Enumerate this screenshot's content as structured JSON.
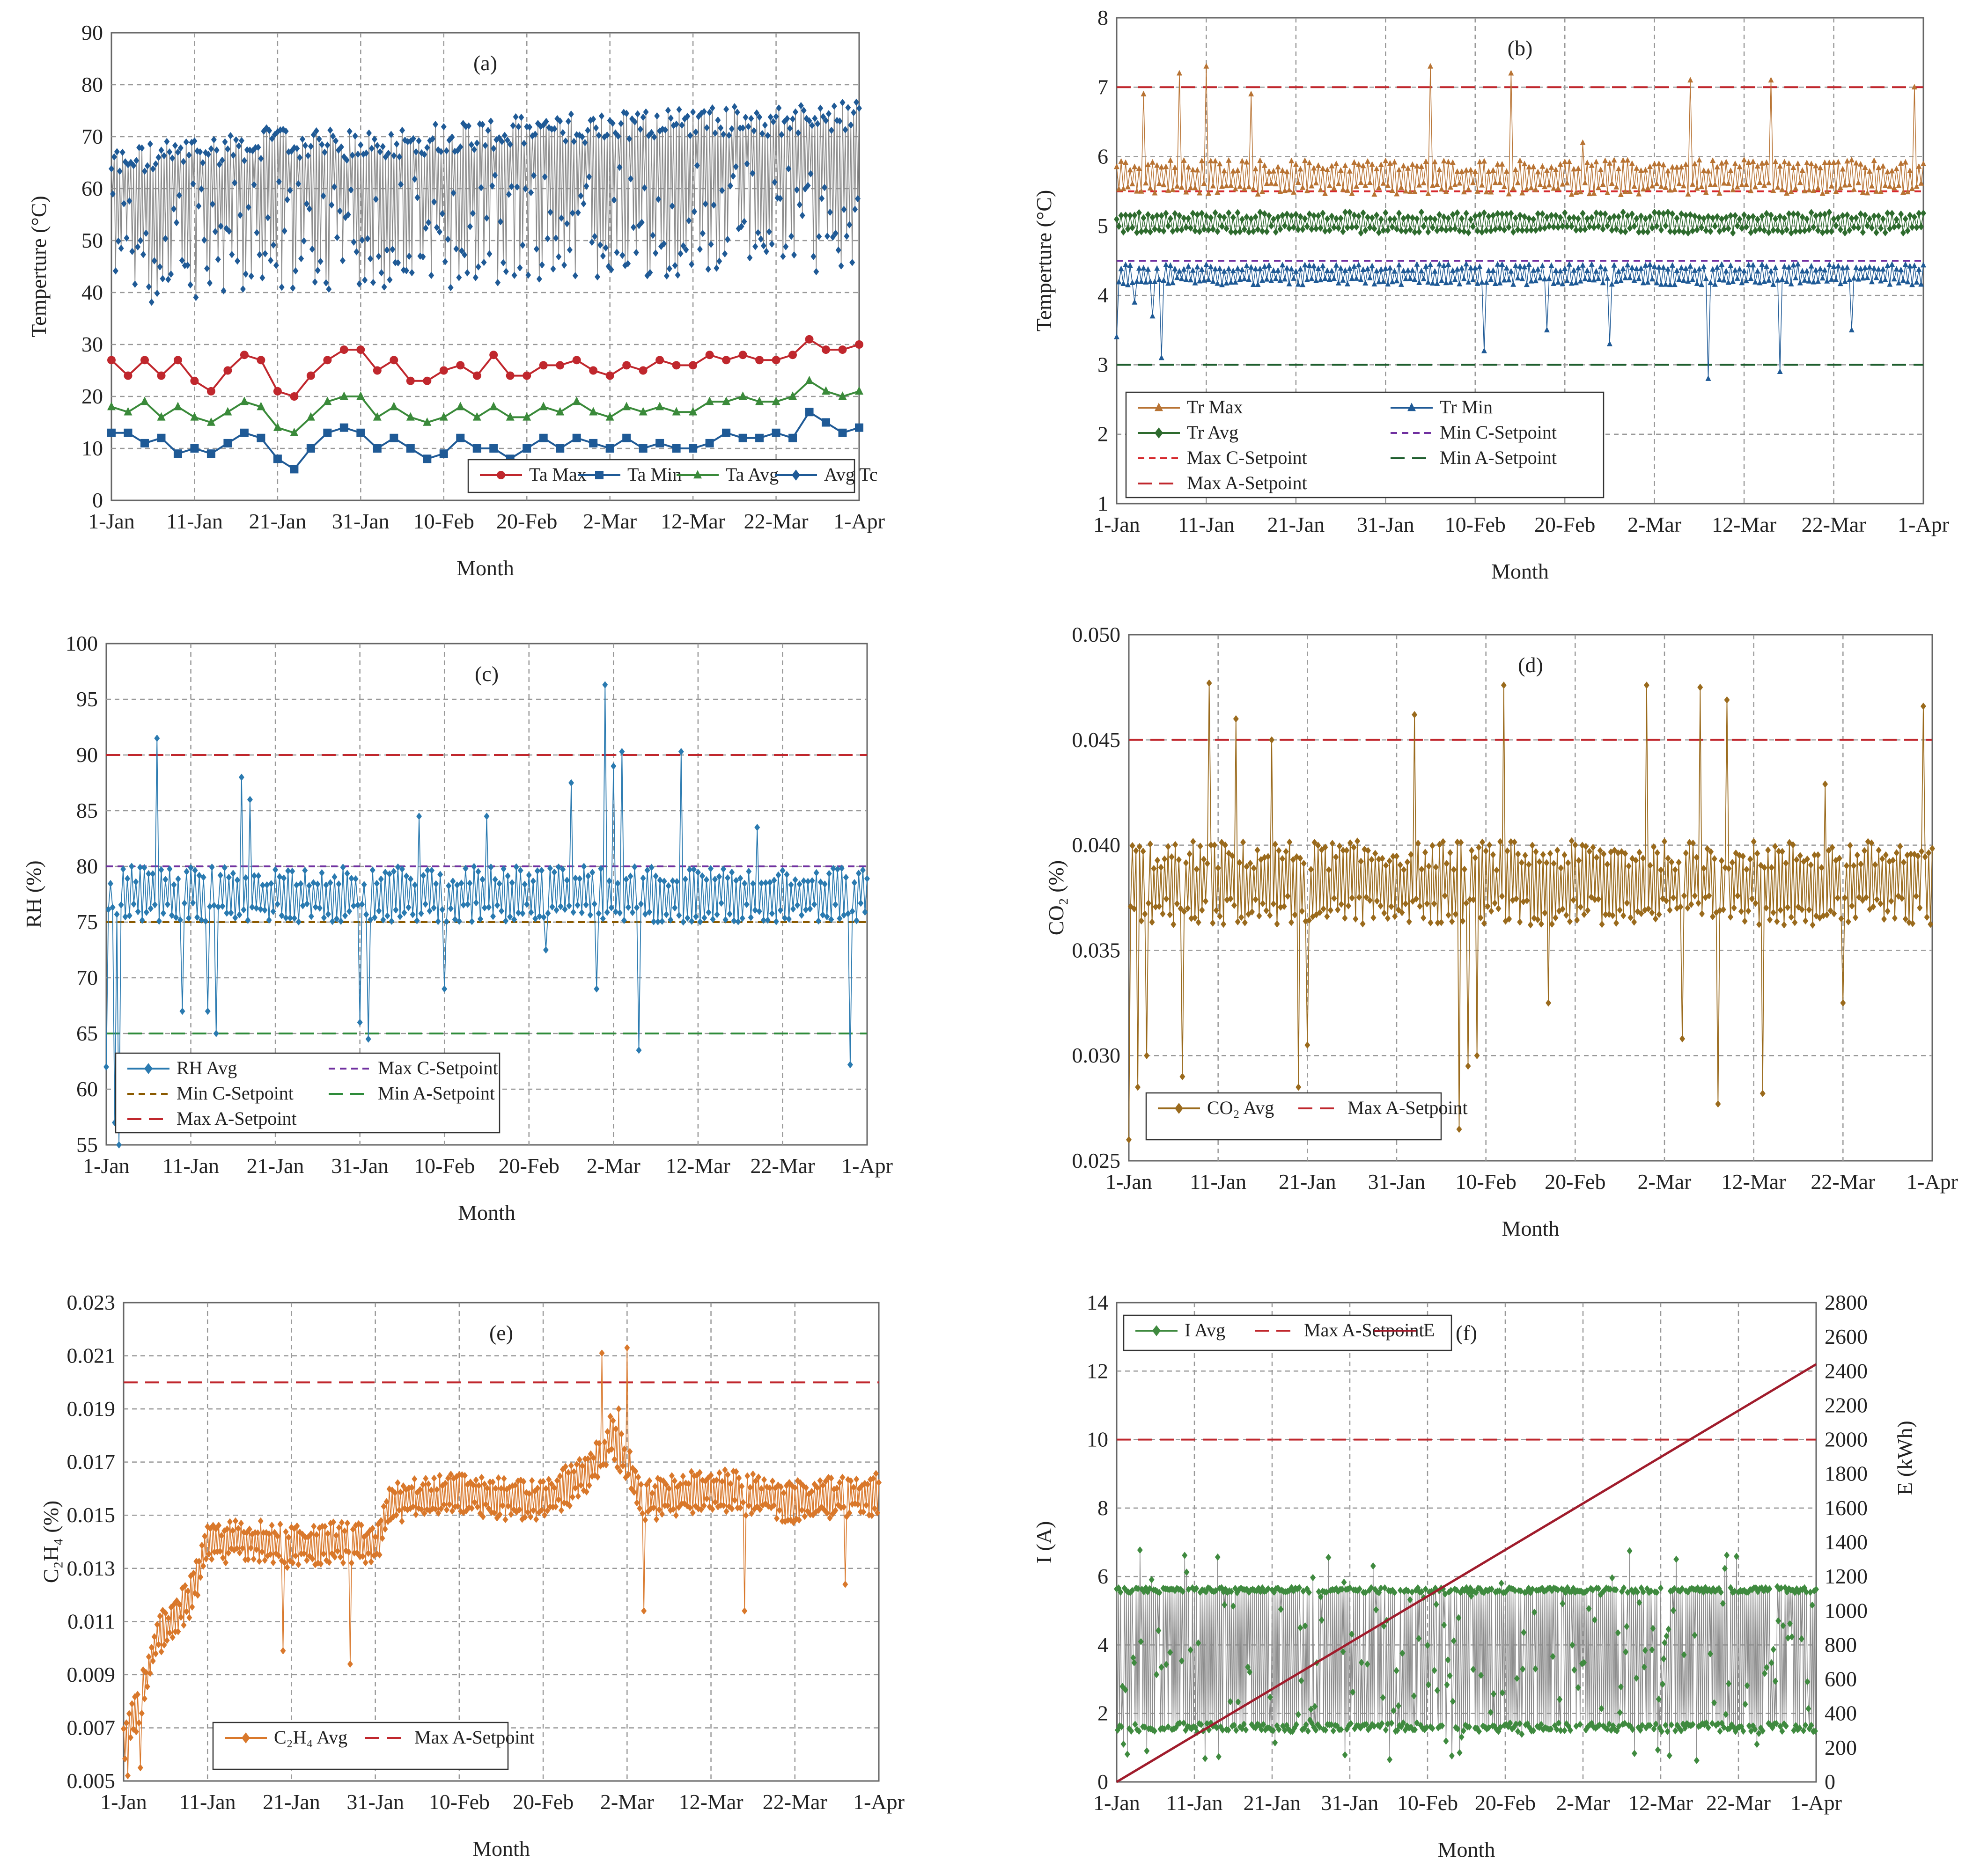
{
  "x_axis": {
    "label": "Month",
    "ticks": [
      "1-Jan",
      "11-Jan",
      "21-Jan",
      "31-Jan",
      "10-Feb",
      "20-Feb",
      "2-Mar",
      "12-Mar",
      "22-Mar",
      "1-Apr"
    ],
    "tick_days": [
      0,
      10,
      20,
      30,
      40,
      50,
      60,
      70,
      80,
      90
    ]
  },
  "chart_data": [
    {
      "panel": "(a)",
      "type": "line",
      "ylabel": "Temperture (°C)",
      "ylim": [
        0,
        90
      ],
      "yticks": [
        0,
        10,
        20,
        30,
        40,
        50,
        60,
        70,
        80,
        90
      ],
      "xlabel": "Month",
      "legend": [
        "Ta Max",
        "Ta Min",
        "Ta Avg",
        "Avg Tc"
      ],
      "legend_position": "bottom-right",
      "grid": true,
      "series": [
        {
          "name": "Ta Max",
          "color": "#c0272d",
          "marker": "circle",
          "x": [
            0,
            2,
            4,
            6,
            8,
            10,
            12,
            14,
            16,
            18,
            20,
            22,
            24,
            26,
            28,
            30,
            32,
            34,
            36,
            38,
            40,
            42,
            44,
            46,
            48,
            50,
            52,
            54,
            56,
            58,
            60,
            62,
            64,
            66,
            68,
            70,
            72,
            74,
            76,
            78,
            80,
            82,
            84,
            86,
            88,
            90
          ],
          "y": [
            27,
            24,
            27,
            24,
            27,
            23,
            21,
            25,
            28,
            27,
            21,
            20,
            24,
            27,
            29,
            29,
            25,
            27,
            23,
            23,
            25,
            26,
            24,
            28,
            24,
            24,
            26,
            26,
            27,
            25,
            24,
            26,
            25,
            27,
            26,
            26,
            28,
            27,
            28,
            27,
            27,
            28,
            31,
            29,
            29,
            30
          ]
        },
        {
          "name": "Ta Min",
          "color": "#1f5a96",
          "marker": "square",
          "x": [
            0,
            2,
            4,
            6,
            8,
            10,
            12,
            14,
            16,
            18,
            20,
            22,
            24,
            26,
            28,
            30,
            32,
            34,
            36,
            38,
            40,
            42,
            44,
            46,
            48,
            50,
            52,
            54,
            56,
            58,
            60,
            62,
            64,
            66,
            68,
            70,
            72,
            74,
            76,
            78,
            80,
            82,
            84,
            86,
            88,
            90
          ],
          "y": [
            13,
            13,
            11,
            12,
            9,
            10,
            9,
            11,
            13,
            12,
            8,
            6,
            10,
            13,
            14,
            13,
            10,
            12,
            10,
            8,
            9,
            12,
            10,
            10,
            8,
            10,
            12,
            10,
            12,
            11,
            10,
            12,
            10,
            11,
            10,
            10,
            11,
            13,
            12,
            12,
            13,
            12,
            17,
            15,
            13,
            14
          ]
        },
        {
          "name": "Ta Avg",
          "color": "#3a8a3a",
          "marker": "triangle",
          "x": [
            0,
            2,
            4,
            6,
            8,
            10,
            12,
            14,
            16,
            18,
            20,
            22,
            24,
            26,
            28,
            30,
            32,
            34,
            36,
            38,
            40,
            42,
            44,
            46,
            48,
            50,
            52,
            54,
            56,
            58,
            60,
            62,
            64,
            66,
            68,
            70,
            72,
            74,
            76,
            78,
            80,
            82,
            84,
            86,
            88,
            90
          ],
          "y": [
            18,
            17,
            19,
            16,
            18,
            16,
            15,
            17,
            19,
            18,
            14,
            13,
            16,
            19,
            20,
            20,
            16,
            18,
            16,
            15,
            16,
            18,
            16,
            18,
            16,
            16,
            18,
            17,
            19,
            17,
            16,
            18,
            17,
            18,
            17,
            17,
            19,
            19,
            20,
            19,
            19,
            20,
            23,
            21,
            20,
            21
          ]
        },
        {
          "name": "Avg Tc",
          "color": "#1f5a96",
          "marker": "diamond",
          "style": "oscillating",
          "x": [
            0,
            10,
            20,
            30,
            40,
            50,
            60,
            70,
            80,
            90
          ],
          "y_high": [
            65,
            67,
            69,
            68,
            70,
            71,
            72,
            73,
            73,
            74
          ],
          "y_low": [
            41,
            43,
            44,
            45,
            44,
            45,
            47,
            47,
            48,
            48
          ]
        }
      ]
    },
    {
      "panel": "(b)",
      "type": "line",
      "ylabel": "Temperture (°C)",
      "ylim": [
        1,
        8
      ],
      "yticks": [
        1,
        2,
        3,
        4,
        5,
        6,
        7,
        8
      ],
      "xlabel": "Month",
      "legend": [
        "Tr Max",
        "Tr Min",
        "Tr Avg",
        "Min C-Setpoint",
        "Max C-Setpoint",
        "Min A-Setpoint",
        "Max A-Setpoint"
      ],
      "legend_position": "bottom-left",
      "grid": true,
      "setpoints": [
        {
          "name": "Max C-Setpoint",
          "value": 5.5,
          "color": "#d6282c",
          "dash": "short"
        },
        {
          "name": "Min C-Setpoint",
          "value": 4.5,
          "color": "#7030a0",
          "dash": "short"
        },
        {
          "name": "Max A-Setpoint",
          "value": 7,
          "color": "#c0272d",
          "dash": "long"
        },
        {
          "name": "Min A-Setpoint",
          "value": 3,
          "color": "#1e5e2e",
          "dash": "long"
        }
      ],
      "series": [
        {
          "name": "Tr Max",
          "color": "#b87333",
          "marker": "triangle",
          "base": 5.7,
          "band": 0.25,
          "spikes": [
            [
              3,
              6.9
            ],
            [
              7,
              7.2
            ],
            [
              10,
              7.3
            ],
            [
              15,
              6.9
            ],
            [
              35,
              7.3
            ],
            [
              44,
              7.2
            ],
            [
              52,
              6.2
            ],
            [
              64,
              7.1
            ],
            [
              73,
              7.1
            ],
            [
              89,
              7.0
            ]
          ]
        },
        {
          "name": "Tr Min",
          "color": "#1f5a96",
          "marker": "triangle",
          "base": 4.3,
          "band": 0.15,
          "dips": [
            [
              0,
              3.4
            ],
            [
              2,
              3.9
            ],
            [
              4,
              3.7
            ],
            [
              5,
              3.1
            ],
            [
              41,
              3.2
            ],
            [
              48,
              3.5
            ],
            [
              55,
              3.3
            ],
            [
              66,
              2.8
            ],
            [
              74,
              2.9
            ],
            [
              82,
              3.5
            ]
          ]
        },
        {
          "name": "Tr Avg",
          "color": "#2e6b2e",
          "marker": "diamond",
          "base": 5.05,
          "band": 0.15
        }
      ]
    },
    {
      "panel": "(c)",
      "type": "line",
      "ylabel": "RH  (%)",
      "ylim": [
        55,
        100
      ],
      "yticks": [
        55,
        60,
        65,
        70,
        75,
        80,
        85,
        90,
        95,
        100
      ],
      "xlabel": "Month",
      "legend": [
        "RH Avg",
        "Max C-Setpoint",
        "Min C-Setpoint",
        "Min A-Setpoint",
        "Max A-Setpoint"
      ],
      "legend_position": "bottom-left",
      "grid": true,
      "setpoints": [
        {
          "name": "Max C-Setpoint",
          "value": 80,
          "color": "#7030a0",
          "dash": "short"
        },
        {
          "name": "Min C-Setpoint",
          "value": 75,
          "color": "#8b5a00",
          "dash": "short"
        },
        {
          "name": "Min A-Setpoint",
          "value": 65,
          "color": "#2e8b3a",
          "dash": "long"
        },
        {
          "name": "Max A-Setpoint",
          "value": 90,
          "color": "#c0272d",
          "dash": "long"
        }
      ],
      "series": [
        {
          "name": "RH Avg",
          "color": "#2a7ab0",
          "marker": "diamond",
          "base": 77.5,
          "band": 2.5,
          "spikes": [
            [
              6,
              91.5
            ],
            [
              16,
              88
            ],
            [
              17,
              86
            ],
            [
              37,
              84.5
            ],
            [
              45,
              84.5
            ],
            [
              55,
              87.5
            ],
            [
              59,
              96.3
            ],
            [
              60,
              89
            ],
            [
              61,
              90.3
            ],
            [
              68,
              90.3
            ],
            [
              77,
              83.5
            ]
          ],
          "dips": [
            [
              0,
              62
            ],
            [
              1,
              57
            ],
            [
              1.5,
              55
            ],
            [
              9,
              67
            ],
            [
              12,
              67
            ],
            [
              13,
              65
            ],
            [
              30,
              66
            ],
            [
              31,
              64.5
            ],
            [
              40,
              69
            ],
            [
              52,
              72.5
            ],
            [
              58,
              69
            ],
            [
              63,
              63.5
            ],
            [
              88,
              62.2
            ]
          ]
        }
      ]
    },
    {
      "panel": "(d)",
      "type": "line",
      "ylabel": "CO₂  (%)",
      "ylim": [
        0.025,
        0.05
      ],
      "yticks": [
        "0.025",
        "0.030",
        "0.035",
        "0.040",
        "0.045",
        "0.050"
      ],
      "xlabel": "Month",
      "legend": [
        "CO₂ Avg",
        "Max A-Setpoint"
      ],
      "legend_position": "bottom-left",
      "grid": true,
      "setpoints": [
        {
          "name": "Max A-Setpoint",
          "value": 0.045,
          "color": "#c0272d",
          "dash": "long"
        }
      ],
      "series": [
        {
          "name": "CO₂ Avg",
          "color": "#9a6a1c",
          "marker": "diamond",
          "base": 0.0382,
          "band": 0.002,
          "spikes": [
            [
              9,
              0.0477
            ],
            [
              12,
              0.046
            ],
            [
              16,
              0.045
            ],
            [
              32,
              0.0462
            ],
            [
              42,
              0.0476
            ],
            [
              58,
              0.0476
            ],
            [
              64,
              0.0475
            ],
            [
              67,
              0.0469
            ],
            [
              78,
              0.0429
            ],
            [
              89,
              0.0466
            ]
          ],
          "dips": [
            [
              0,
              0.026
            ],
            [
              1,
              0.0285
            ],
            [
              2,
              0.03
            ],
            [
              6,
              0.029
            ],
            [
              19,
              0.0285
            ],
            [
              20,
              0.0305
            ],
            [
              37,
              0.0265
            ],
            [
              38,
              0.0295
            ],
            [
              39,
              0.03
            ],
            [
              47,
              0.0325
            ],
            [
              62,
              0.0308
            ],
            [
              66,
              0.0277
            ],
            [
              71,
              0.0282
            ],
            [
              80,
              0.0325
            ]
          ]
        }
      ]
    },
    {
      "panel": "(e)",
      "type": "line",
      "ylabel": "C₂H₄ (%)",
      "ylim": [
        0.005,
        0.023
      ],
      "yticks": [
        "0.005",
        "0.007",
        "0.009",
        "0.011",
        "0.013",
        "0.015",
        "0.017",
        "0.019",
        "0.021",
        "0.023"
      ],
      "xlabel": "Month",
      "legend": [
        "C₂H₄ Avg",
        "Max A-Setpoint"
      ],
      "legend_position": "bottom-left",
      "grid": true,
      "setpoints": [
        {
          "name": "Max A-Setpoint",
          "value": 0.02,
          "color": "#c0272d",
          "dash": "long"
        }
      ],
      "series": [
        {
          "name": "C₂H₄ Avg",
          "color": "#d9782b",
          "marker": "diamond",
          "trend_x": [
            0,
            2,
            4,
            6,
            8,
            10,
            14,
            20,
            26,
            30,
            32,
            40,
            50,
            55,
            57,
            58,
            60,
            62,
            70,
            80,
            90
          ],
          "trend_y": [
            0.0065,
            0.008,
            0.0105,
            0.011,
            0.012,
            0.0138,
            0.0141,
            0.0138,
            0.014,
            0.0138,
            0.0155,
            0.0158,
            0.0155,
            0.0165,
            0.0172,
            0.018,
            0.017,
            0.0155,
            0.016,
            0.0155,
            0.0158
          ],
          "band": 0.0008,
          "spikes": [
            [
              57,
              0.0211
            ],
            [
              60,
              0.0213
            ],
            [
              59,
              0.019
            ]
          ],
          "dips": [
            [
              0.5,
              0.0052
            ],
            [
              2,
              0.0055
            ],
            [
              19,
              0.0099
            ],
            [
              27,
              0.0094
            ],
            [
              62,
              0.0114
            ],
            [
              74,
              0.0114
            ],
            [
              86,
              0.0124
            ]
          ]
        }
      ]
    },
    {
      "panel": "(f)",
      "type": "line",
      "ylabel": "I (A)",
      "y2label": "E (kWh)",
      "ylim": [
        0,
        14
      ],
      "y2lim": [
        0,
        2800
      ],
      "yticks": [
        0,
        2,
        4,
        6,
        8,
        10,
        12,
        14
      ],
      "y2ticks": [
        0,
        200,
        400,
        600,
        800,
        1000,
        1200,
        1400,
        1600,
        1800,
        2000,
        2200,
        2400,
        2600,
        2800
      ],
      "xlabel": "Month",
      "legend": [
        "I Avg",
        "Max A-Setpoint",
        "E"
      ],
      "legend_position": "top-left",
      "grid": true,
      "setpoints": [
        {
          "name": "Max A-Setpoint",
          "value": 10,
          "color": "#c0272d",
          "dash": "long"
        }
      ],
      "series": [
        {
          "name": "I Avg",
          "color": "#3f8a3f",
          "marker": "diamond",
          "style": "oscillating",
          "y_high": 5.6,
          "y_low": 1.6
        },
        {
          "name": "E",
          "color": "#a01c2c",
          "axis": "right",
          "x": [
            0,
            90
          ],
          "y": [
            0,
            2440
          ]
        }
      ]
    }
  ]
}
